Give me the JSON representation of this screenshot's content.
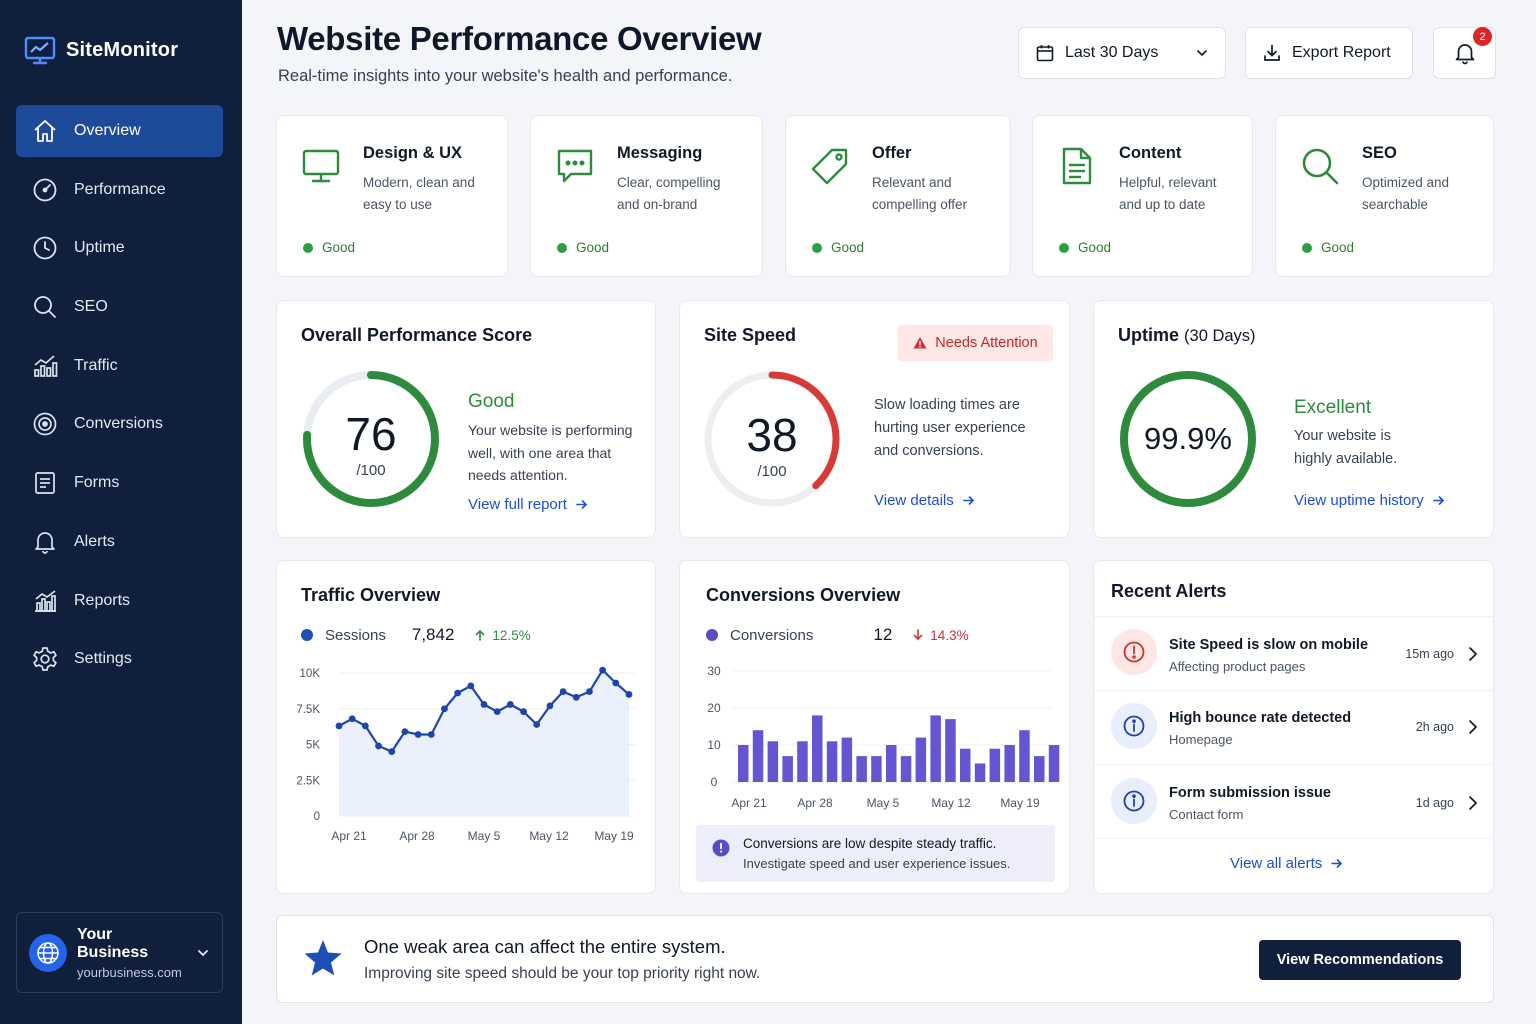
{
  "app": {
    "name": "SiteMonitor"
  },
  "sidebar": {
    "items": [
      {
        "label": "Overview",
        "icon": "home-icon",
        "active": true
      },
      {
        "label": "Performance",
        "icon": "gauge-icon"
      },
      {
        "label": "Uptime",
        "icon": "clock-icon"
      },
      {
        "label": "SEO",
        "icon": "search-icon"
      },
      {
        "label": "Traffic",
        "icon": "traffic-chart-icon"
      },
      {
        "label": "Conversions",
        "icon": "target-icon"
      },
      {
        "label": "Forms",
        "icon": "form-icon"
      },
      {
        "label": "Alerts",
        "icon": "bell-icon"
      },
      {
        "label": "Reports",
        "icon": "reports-chart-icon"
      },
      {
        "label": "Settings",
        "icon": "gear-icon"
      }
    ],
    "business": {
      "name": "Your Business",
      "domain": "yourbusiness.com"
    }
  },
  "header": {
    "title": "Website Performance Overview",
    "subtitle": "Real-time insights into your website's health and performance.",
    "date_range": "Last 30 Days",
    "export_label": "Export Report",
    "notification_count": "2"
  },
  "factors": [
    {
      "title": "Design & UX",
      "desc": "Modern, clean and easy to use",
      "status": "Good",
      "icon": "monitor-icon"
    },
    {
      "title": "Messaging",
      "desc": "Clear, compelling and on-brand",
      "status": "Good",
      "icon": "chat-icon"
    },
    {
      "title": "Offer",
      "desc": "Relevant and compelling offer",
      "status": "Good",
      "icon": "tag-icon"
    },
    {
      "title": "Content",
      "desc": "Helpful, relevant and up to date",
      "status": "Good",
      "icon": "document-icon"
    },
    {
      "title": "SEO",
      "desc": "Optimized and searchable",
      "status": "Good",
      "icon": "search-icon"
    }
  ],
  "score": {
    "title": "Overall Performance Score",
    "value": "76",
    "denom": "/100",
    "fraction": 0.76,
    "status": "Good",
    "desc": "Your website is performing well, with one area that needs attention.",
    "link": "View full report",
    "color": "#2e8b3e"
  },
  "speed": {
    "title": "Site Speed",
    "badge": "Needs Attention",
    "value": "38",
    "denom": "/100",
    "fraction": 0.38,
    "desc": "Slow loading times are hurting user experience and conversions.",
    "link": "View details",
    "color": "#d83a3a"
  },
  "uptime": {
    "title": "Uptime",
    "title_suffix": "(30 Days)",
    "value": "99.9%",
    "fraction": 0.999,
    "status": "Excellent",
    "desc": "Your website is highly available.",
    "link": "View uptime history",
    "color": "#2e8b3e"
  },
  "traffic": {
    "title": "Traffic Overview",
    "legend": "Sessions",
    "total": "7,842",
    "change": "12.5%",
    "color": "#1e40af"
  },
  "conversions": {
    "title": "Conversions Overview",
    "legend": "Conversions",
    "total": "12",
    "change": "14.3%",
    "color": "#6d5fd3",
    "note_title": "Conversions are low despite steady traffic.",
    "note_body": "Investigate speed and user experience issues."
  },
  "chart_data": [
    {
      "type": "area",
      "title": "Traffic Overview",
      "series": [
        {
          "name": "Sessions",
          "values": [
            6300,
            6800,
            6300,
            4900,
            4500,
            5900,
            5700,
            5700,
            7500,
            8600,
            9100,
            7800,
            7300,
            7800,
            7300,
            6400,
            7700,
            8700,
            8300,
            8700,
            10200,
            9300,
            8500
          ]
        }
      ],
      "x_ticks": [
        "Apr 21",
        "Apr 28",
        "May 5",
        "May 12",
        "May 19"
      ],
      "y_ticks": [
        "10K",
        "7.5K",
        "5K",
        "2.5K",
        "0"
      ],
      "ylim": [
        0,
        10000
      ]
    },
    {
      "type": "bar",
      "title": "Conversions Overview",
      "series": [
        {
          "name": "Conversions",
          "values": [
            10,
            14,
            11,
            7,
            11,
            18,
            11,
            12,
            7,
            7,
            10,
            7,
            12,
            18,
            17,
            9,
            5,
            9,
            10,
            14,
            7,
            10
          ]
        }
      ],
      "x_ticks": [
        "Apr 21",
        "Apr 28",
        "May 5",
        "May 12",
        "May 19"
      ],
      "y_ticks": [
        "30",
        "20",
        "10",
        "0"
      ],
      "ylim": [
        0,
        30
      ]
    }
  ],
  "alerts": {
    "title": "Recent Alerts",
    "items": [
      {
        "title": "Site Speed is slow on mobile",
        "sub": "Affecting product pages",
        "time": "15m ago",
        "severity": "critical"
      },
      {
        "title": "High bounce rate detected",
        "sub": "Homepage",
        "time": "2h ago",
        "severity": "info"
      },
      {
        "title": "Form submission issue",
        "sub": "Contact form",
        "time": "1d ago",
        "severity": "info"
      }
    ],
    "view_all": "View all alerts"
  },
  "banner": {
    "title": "One weak area can affect the entire system.",
    "sub": "Improving site speed should be your top priority right now.",
    "button": "View Recommendations"
  }
}
